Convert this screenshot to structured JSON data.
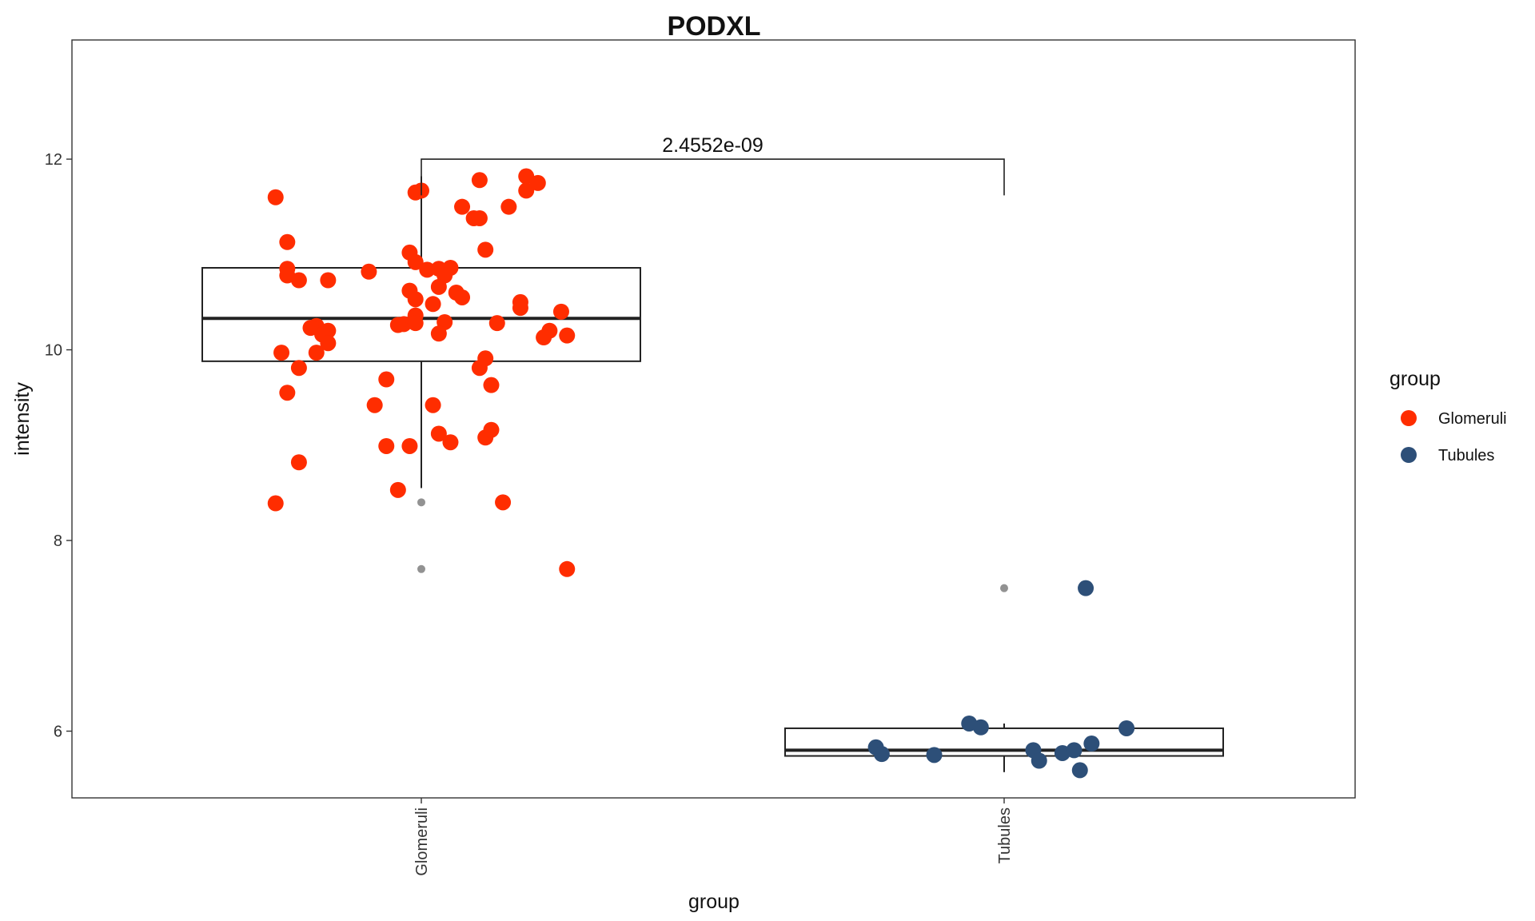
{
  "chart_data": {
    "type": "box",
    "title": "PODXL",
    "xlabel": "group",
    "ylabel": "intensity",
    "categories": [
      "Glomeruli",
      "Tubules"
    ],
    "ylim": [
      5.3,
      13.25
    ],
    "yticks": [
      6,
      8,
      10,
      12
    ],
    "grid": false,
    "legend": {
      "title": "group",
      "placement": "right",
      "entries": [
        "Glomeruli",
        "Tubules"
      ]
    },
    "colors": {
      "Glomeruli": "#ff2d00",
      "Tubules": "#2d4f78"
    },
    "annotations": [
      {
        "text": "2.4552e-09",
        "from": "Glomeruli",
        "to": "Tubules"
      }
    ],
    "boxes": [
      {
        "group": "Glomeruli",
        "q1": 9.88,
        "median": 10.33,
        "q3": 10.86,
        "whisker_low": 8.55,
        "whisker_high": 11.82,
        "outliers": [
          8.4,
          7.7
        ]
      },
      {
        "group": "Tubules",
        "q1": 5.74,
        "median": 5.8,
        "q3": 6.03,
        "whisker_low": 5.57,
        "whisker_high": 6.08,
        "outliers": [
          7.5
        ]
      }
    ],
    "series": [
      {
        "name": "Glomeruli",
        "points": [
          {
            "x": 0.75,
            "y": 11.6
          },
          {
            "x": 0.77,
            "y": 11.13
          },
          {
            "x": 0.77,
            "y": 10.85
          },
          {
            "x": 0.77,
            "y": 10.78
          },
          {
            "x": 0.79,
            "y": 10.73
          },
          {
            "x": 0.84,
            "y": 10.73
          },
          {
            "x": 0.91,
            "y": 10.82
          },
          {
            "x": 0.99,
            "y": 11.65
          },
          {
            "x": 1.0,
            "y": 11.67
          },
          {
            "x": 0.98,
            "y": 11.02
          },
          {
            "x": 0.99,
            "y": 10.92
          },
          {
            "x": 1.05,
            "y": 10.86
          },
          {
            "x": 1.01,
            "y": 10.84
          },
          {
            "x": 1.03,
            "y": 10.85
          },
          {
            "x": 1.07,
            "y": 11.5
          },
          {
            "x": 1.09,
            "y": 11.38
          },
          {
            "x": 1.1,
            "y": 11.38
          },
          {
            "x": 1.1,
            "y": 11.78
          },
          {
            "x": 1.11,
            "y": 11.05
          },
          {
            "x": 1.15,
            "y": 11.5
          },
          {
            "x": 1.18,
            "y": 11.82
          },
          {
            "x": 1.18,
            "y": 11.67
          },
          {
            "x": 1.2,
            "y": 11.75
          },
          {
            "x": 1.04,
            "y": 10.78
          },
          {
            "x": 1.03,
            "y": 10.66
          },
          {
            "x": 1.06,
            "y": 10.6
          },
          {
            "x": 1.07,
            "y": 10.55
          },
          {
            "x": 1.02,
            "y": 10.48
          },
          {
            "x": 0.98,
            "y": 10.62
          },
          {
            "x": 0.99,
            "y": 10.53
          },
          {
            "x": 1.17,
            "y": 10.5
          },
          {
            "x": 1.17,
            "y": 10.44
          },
          {
            "x": 1.24,
            "y": 10.4
          },
          {
            "x": 1.22,
            "y": 10.2
          },
          {
            "x": 1.21,
            "y": 10.13
          },
          {
            "x": 1.25,
            "y": 10.15
          },
          {
            "x": 1.13,
            "y": 10.28
          },
          {
            "x": 1.04,
            "y": 10.29
          },
          {
            "x": 1.03,
            "y": 10.17
          },
          {
            "x": 0.99,
            "y": 10.36
          },
          {
            "x": 0.97,
            "y": 10.27
          },
          {
            "x": 0.96,
            "y": 10.26
          },
          {
            "x": 0.99,
            "y": 10.28
          },
          {
            "x": 0.82,
            "y": 10.25
          },
          {
            "x": 0.81,
            "y": 10.23
          },
          {
            "x": 0.84,
            "y": 10.2
          },
          {
            "x": 0.83,
            "y": 10.16
          },
          {
            "x": 0.84,
            "y": 10.07
          },
          {
            "x": 0.82,
            "y": 9.97
          },
          {
            "x": 0.76,
            "y": 9.97
          },
          {
            "x": 0.79,
            "y": 9.81
          },
          {
            "x": 0.77,
            "y": 9.55
          },
          {
            "x": 0.92,
            "y": 9.42
          },
          {
            "x": 0.94,
            "y": 9.69
          },
          {
            "x": 1.02,
            "y": 9.42
          },
          {
            "x": 1.1,
            "y": 9.81
          },
          {
            "x": 1.11,
            "y": 9.91
          },
          {
            "x": 1.12,
            "y": 9.63
          },
          {
            "x": 0.98,
            "y": 8.99
          },
          {
            "x": 1.03,
            "y": 9.12
          },
          {
            "x": 1.05,
            "y": 9.03
          },
          {
            "x": 1.11,
            "y": 9.08
          },
          {
            "x": 1.12,
            "y": 9.16
          },
          {
            "x": 0.94,
            "y": 8.99
          },
          {
            "x": 0.79,
            "y": 8.82
          },
          {
            "x": 0.96,
            "y": 8.53
          },
          {
            "x": 0.75,
            "y": 8.39
          },
          {
            "x": 1.14,
            "y": 8.4
          },
          {
            "x": 1.25,
            "y": 7.7
          }
        ]
      },
      {
        "name": "Tubules",
        "points": [
          {
            "x": 2.14,
            "y": 7.5
          },
          {
            "x": 1.94,
            "y": 6.08
          },
          {
            "x": 1.96,
            "y": 6.04
          },
          {
            "x": 2.21,
            "y": 6.03
          },
          {
            "x": 1.78,
            "y": 5.83
          },
          {
            "x": 1.79,
            "y": 5.76
          },
          {
            "x": 1.88,
            "y": 5.75
          },
          {
            "x": 2.05,
            "y": 5.8
          },
          {
            "x": 2.06,
            "y": 5.69
          },
          {
            "x": 2.1,
            "y": 5.77
          },
          {
            "x": 2.12,
            "y": 5.8
          },
          {
            "x": 2.15,
            "y": 5.87
          },
          {
            "x": 2.13,
            "y": 5.59
          }
        ]
      }
    ]
  }
}
